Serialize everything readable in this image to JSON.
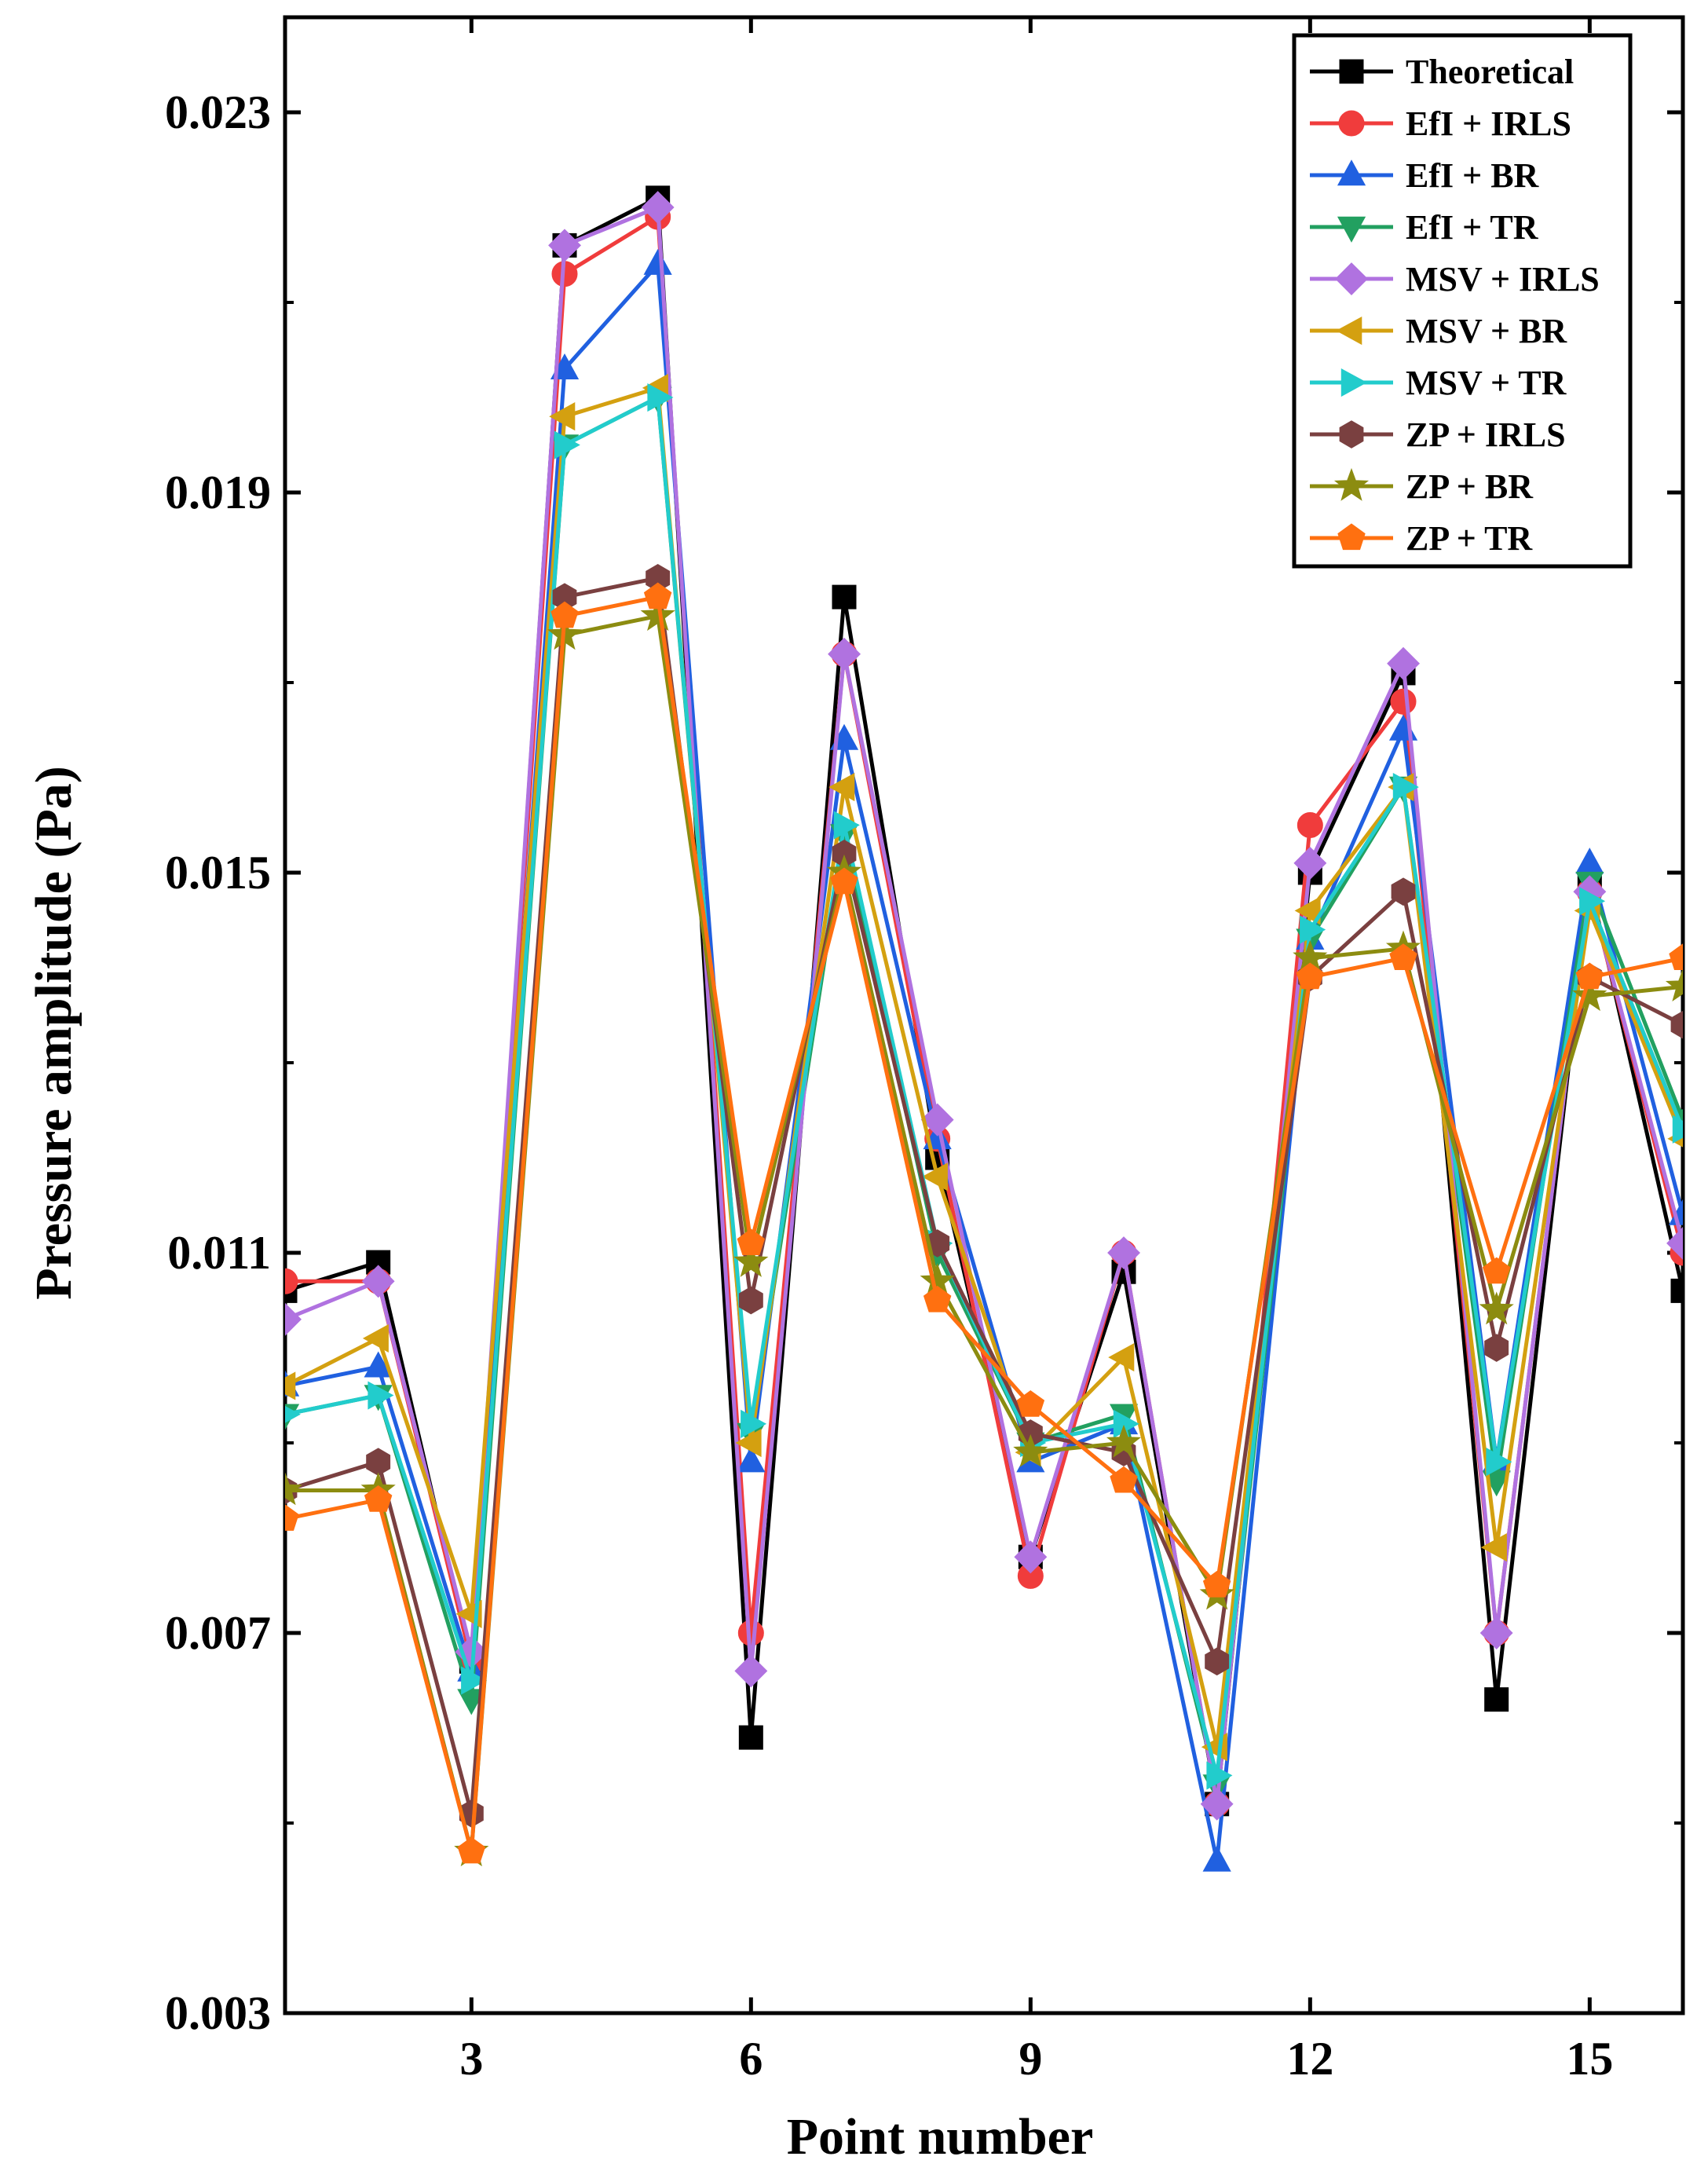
{
  "chart_data": {
    "type": "line",
    "title": "",
    "xlabel": "Point number",
    "ylabel": "Pressure amplitude (Pa)",
    "xlim": [
      1,
      16
    ],
    "ylim": [
      0.003,
      0.024
    ],
    "xticks": [
      3,
      6,
      9,
      12,
      15
    ],
    "xtick_labels": [
      "3",
      "6",
      "9",
      "12",
      "15"
    ],
    "yticks": [
      0.003,
      0.007,
      0.011,
      0.015,
      0.019,
      0.023
    ],
    "ytick_labels": [
      "0.003",
      "0.007",
      "0.011",
      "0.015",
      "0.019",
      "0.023"
    ],
    "x": [
      1,
      2,
      3,
      4,
      5,
      6,
      7,
      8,
      9,
      10,
      11,
      12,
      13,
      14,
      15,
      16
    ],
    "legend_position": "top-right",
    "series": [
      {
        "name": "Theoretical",
        "color": "#000000",
        "marker": "square",
        "values": [
          0.0106,
          0.0109,
          0.0067,
          0.0216,
          0.0221,
          0.0059,
          0.0179,
          0.012,
          0.0078,
          0.0108,
          0.0052,
          0.015,
          0.0171,
          0.0063,
          0.0149,
          0.0106
        ]
      },
      {
        "name": "EfI + IRLS",
        "color": "#f03c3c",
        "marker": "circle",
        "values": [
          0.0107,
          0.0107,
          0.0067,
          0.0213,
          0.0219,
          0.007,
          0.0173,
          0.0122,
          0.0076,
          0.011,
          0.0052,
          0.0155,
          0.0168,
          0.007,
          0.0148,
          0.011
        ]
      },
      {
        "name": "EfI + BR",
        "color": "#2060e0",
        "marker": "triangle-up",
        "values": [
          0.0096,
          0.0098,
          0.0066,
          0.0203,
          0.0214,
          0.0088,
          0.0164,
          0.0122,
          0.0088,
          0.0092,
          0.0046,
          0.0143,
          0.0165,
          0.0088,
          0.0151,
          0.0114
        ]
      },
      {
        "name": "EfI + TR",
        "color": "#22a060",
        "marker": "triangle-down",
        "values": [
          0.0093,
          0.0095,
          0.0063,
          0.0195,
          0.02,
          0.0091,
          0.0154,
          0.011,
          0.009,
          0.0093,
          0.0054,
          0.0143,
          0.0159,
          0.0086,
          0.0149,
          0.0124
        ]
      },
      {
        "name": "MSV + IRLS",
        "color": "#b072e0",
        "marker": "diamond",
        "values": [
          0.0103,
          0.0107,
          0.0068,
          0.0216,
          0.022,
          0.0066,
          0.0173,
          0.0124,
          0.0078,
          0.011,
          0.0052,
          0.0151,
          0.0172,
          0.007,
          0.0148,
          0.0111
        ]
      },
      {
        "name": "MSV + BR",
        "color": "#d4a010",
        "marker": "triangle-left",
        "values": [
          0.0096,
          0.0101,
          0.0072,
          0.0198,
          0.0201,
          0.009,
          0.0159,
          0.0118,
          0.0089,
          0.0099,
          0.0058,
          0.0146,
          0.0159,
          0.0079,
          0.0146,
          0.0122
        ]
      },
      {
        "name": "MSV + TR",
        "color": "#22cccc",
        "marker": "triangle-right",
        "values": [
          0.0093,
          0.0095,
          0.0065,
          0.0195,
          0.02,
          0.0092,
          0.0155,
          0.0111,
          0.009,
          0.0092,
          0.0055,
          0.0144,
          0.0159,
          0.0088,
          0.0147,
          0.0123
        ]
      },
      {
        "name": "ZP + IRLS",
        "color": "#7a4040",
        "marker": "hexagon",
        "values": [
          0.0085,
          0.0088,
          0.0051,
          0.0179,
          0.0181,
          0.0105,
          0.0152,
          0.0111,
          0.0091,
          0.0089,
          0.0067,
          0.0139,
          0.0148,
          0.01,
          0.0139,
          0.0134
        ]
      },
      {
        "name": "ZP + BR",
        "color": "#8c8c10",
        "marker": "star",
        "values": [
          0.0085,
          0.0085,
          0.0047,
          0.0175,
          0.0177,
          0.0109,
          0.015,
          0.0107,
          0.0089,
          0.009,
          0.0074,
          0.0141,
          0.0142,
          0.0104,
          0.0137,
          0.0138
        ]
      },
      {
        "name": "ZP + TR",
        "color": "#ff7010",
        "marker": "pentagon",
        "values": [
          0.0082,
          0.0084,
          0.0047,
          0.0177,
          0.0179,
          0.0111,
          0.0149,
          0.0105,
          0.0094,
          0.0086,
          0.0075,
          0.0139,
          0.0141,
          0.0108,
          0.0139,
          0.0141
        ]
      }
    ]
  }
}
